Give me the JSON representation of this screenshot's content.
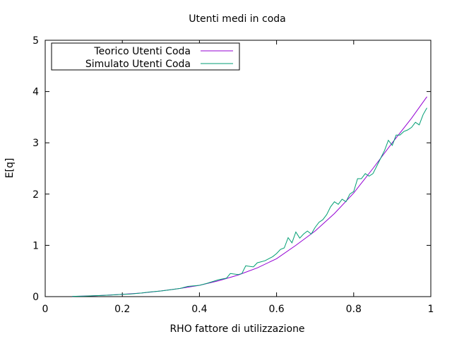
{
  "chart_data": {
    "type": "line",
    "title": "Utenti medi in coda",
    "xlabel": "RHO fattore di utilizzazione",
    "ylabel": "E[q]",
    "xlim": [
      0,
      1
    ],
    "ylim": [
      0,
      5
    ],
    "xticks": [
      0,
      0.2,
      0.4,
      0.6,
      0.8,
      1
    ],
    "xtick_labels": [
      "0",
      "0.2",
      "0.4",
      "0.6",
      "0.8",
      "1"
    ],
    "yticks": [
      0,
      1,
      2,
      3,
      4,
      5
    ],
    "ytick_labels": [
      "0",
      "1",
      "2",
      "3",
      "4",
      "5"
    ],
    "grid": false,
    "legend_position": "top-left",
    "series": [
      {
        "name": "Teorico Utenti Coda",
        "color": "#9400d3",
        "x": [
          0.07,
          0.1,
          0.15,
          0.2,
          0.25,
          0.3,
          0.35,
          0.4,
          0.45,
          0.5,
          0.55,
          0.6,
          0.65,
          0.7,
          0.75,
          0.8,
          0.85,
          0.9,
          0.95,
          0.99
        ],
        "y": [
          0.005,
          0.01,
          0.025,
          0.045,
          0.07,
          0.11,
          0.16,
          0.22,
          0.31,
          0.42,
          0.56,
          0.74,
          1.0,
          1.28,
          1.62,
          2.02,
          2.5,
          3.0,
          3.48,
          3.9
        ]
      },
      {
        "name": "Simulato Utenti Coda",
        "color": "#009e73",
        "x": [
          0.07,
          0.1,
          0.12,
          0.15,
          0.17,
          0.2,
          0.22,
          0.25,
          0.27,
          0.3,
          0.32,
          0.35,
          0.37,
          0.4,
          0.42,
          0.45,
          0.47,
          0.48,
          0.5,
          0.51,
          0.52,
          0.54,
          0.55,
          0.57,
          0.59,
          0.6,
          0.61,
          0.62,
          0.63,
          0.64,
          0.65,
          0.66,
          0.67,
          0.68,
          0.69,
          0.7,
          0.71,
          0.72,
          0.73,
          0.74,
          0.75,
          0.76,
          0.77,
          0.78,
          0.79,
          0.8,
          0.81,
          0.82,
          0.83,
          0.84,
          0.85,
          0.86,
          0.87,
          0.88,
          0.89,
          0.9,
          0.91,
          0.92,
          0.93,
          0.94,
          0.95,
          0.96,
          0.97,
          0.98,
          0.99
        ],
        "y": [
          0.005,
          0.01,
          0.015,
          0.025,
          0.03,
          0.045,
          0.05,
          0.07,
          0.09,
          0.11,
          0.13,
          0.16,
          0.2,
          0.22,
          0.26,
          0.33,
          0.36,
          0.45,
          0.43,
          0.45,
          0.6,
          0.58,
          0.66,
          0.7,
          0.78,
          0.84,
          0.92,
          0.95,
          1.15,
          1.05,
          1.26,
          1.14,
          1.22,
          1.28,
          1.22,
          1.35,
          1.45,
          1.5,
          1.6,
          1.75,
          1.85,
          1.8,
          1.9,
          1.85,
          2.0,
          2.05,
          2.3,
          2.3,
          2.4,
          2.35,
          2.4,
          2.55,
          2.7,
          2.85,
          3.05,
          2.95,
          3.15,
          3.15,
          3.22,
          3.25,
          3.3,
          3.4,
          3.35,
          3.55,
          3.68
        ]
      }
    ]
  }
}
